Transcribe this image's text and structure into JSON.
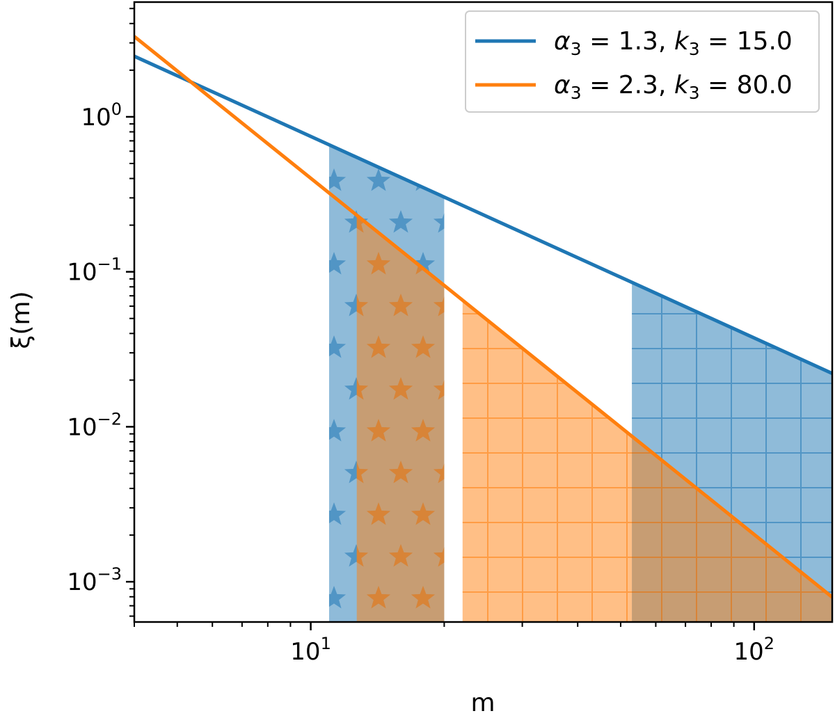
{
  "chart_data": {
    "type": "line",
    "title": "",
    "xlabel": "m",
    "ylabel": "ξ(m)",
    "xscale": "log",
    "yscale": "log",
    "xlim": [
      4,
      150
    ],
    "ylim": [
      0.00055,
      5.5
    ],
    "grid": false,
    "legend_position": "top-right",
    "x_ticks": [
      {
        "value": 10,
        "base": "10",
        "exp": "1"
      },
      {
        "value": 100,
        "base": "10",
        "exp": "2"
      }
    ],
    "y_ticks": [
      {
        "value": 1,
        "base": "10",
        "exp": "0"
      },
      {
        "value": 0.1,
        "base": "10",
        "exp": "−1"
      },
      {
        "value": 0.01,
        "base": "10",
        "exp": "−2"
      },
      {
        "value": 0.001,
        "base": "10",
        "exp": "−3"
      }
    ],
    "series": [
      {
        "name": "α₃ = 1.3, k₃ = 15.0",
        "legend_parts": [
          "α",
          "3",
          " = 1.3, ",
          "k",
          "3",
          " = 15.0"
        ],
        "color": "#1f77b4",
        "k": 15.0,
        "alpha": 1.3,
        "x": [
          4,
          150
        ],
        "y": [
          2.46,
          0.0221
        ]
      },
      {
        "name": "α₃ = 2.3, k₃ = 80.0",
        "legend_parts": [
          "α",
          "3",
          " = 2.3, ",
          "k",
          "3",
          " = 80.0"
        ],
        "color": "#ff7f0e",
        "k": 80.0,
        "alpha": 2.3,
        "x": [
          4,
          150
        ],
        "y": [
          3.3,
          0.000795
        ]
      }
    ],
    "shaded_regions": [
      {
        "series": 0,
        "hatch": "stars",
        "x_range": [
          11,
          20
        ],
        "color": "#1f77b4"
      },
      {
        "series": 1,
        "hatch": "stars",
        "x_range": [
          12.7,
          20
        ],
        "color": "#ff7f0e"
      },
      {
        "series": 1,
        "hatch": "grid",
        "x_range": [
          22,
          53
        ],
        "color": "#ff7f0e"
      },
      {
        "series": 0,
        "hatch": "grid",
        "x_range": [
          53,
          150
        ],
        "color": "#1f77b4"
      },
      {
        "series": 1,
        "hatch": "grid",
        "x_range": [
          53,
          150
        ],
        "color": "#ff7f0e"
      }
    ]
  }
}
